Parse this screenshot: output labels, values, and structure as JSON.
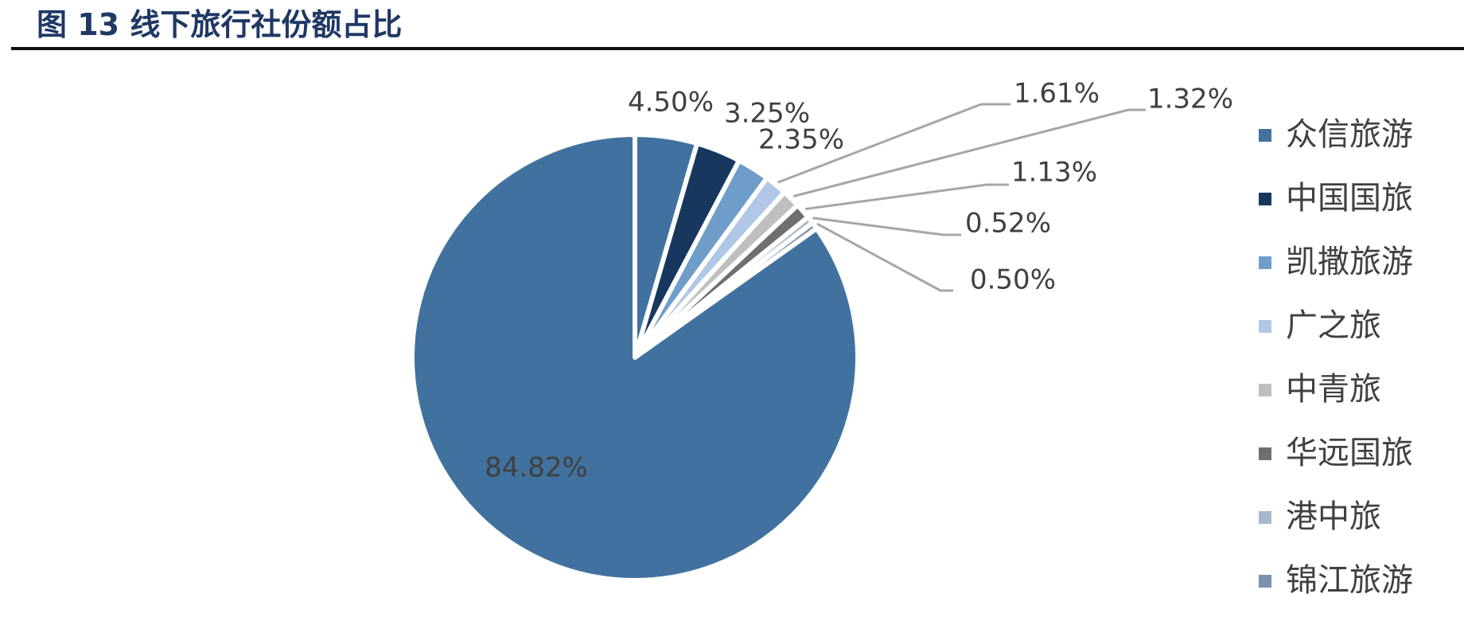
{
  "figure": {
    "title": "图 13 线下旅行社份额占比"
  },
  "chart_data": {
    "type": "pie",
    "title": "图 13 线下旅行社份额占比",
    "legend_position": "right",
    "slices": [
      {
        "name": "众信旅游",
        "value": 4.5,
        "label": "4.50%",
        "color": "#41729f"
      },
      {
        "name": "中国国旅",
        "value": 3.25,
        "label": "3.25%",
        "color": "#17375e"
      },
      {
        "name": "凯撒旅游",
        "value": 2.35,
        "label": "2.35%",
        "color": "#6d9dc8"
      },
      {
        "name": "广之旅",
        "value": 1.61,
        "label": "1.61%",
        "color": "#b0c8e6"
      },
      {
        "name": "中青旅",
        "value": 1.32,
        "label": "1.32%",
        "color": "#bfbfbf"
      },
      {
        "name": "华远国旅",
        "value": 1.13,
        "label": "1.13%",
        "color": "#6f6f6f"
      },
      {
        "name": "港中旅",
        "value": 0.52,
        "label": "0.52%",
        "color": "#a6b8cc"
      },
      {
        "name": "锦江旅游",
        "value": 0.5,
        "label": "0.50%",
        "color": "#7b8fae"
      },
      {
        "name": "",
        "value": 84.82,
        "label": "84.82%",
        "color": "#41729f"
      }
    ]
  }
}
